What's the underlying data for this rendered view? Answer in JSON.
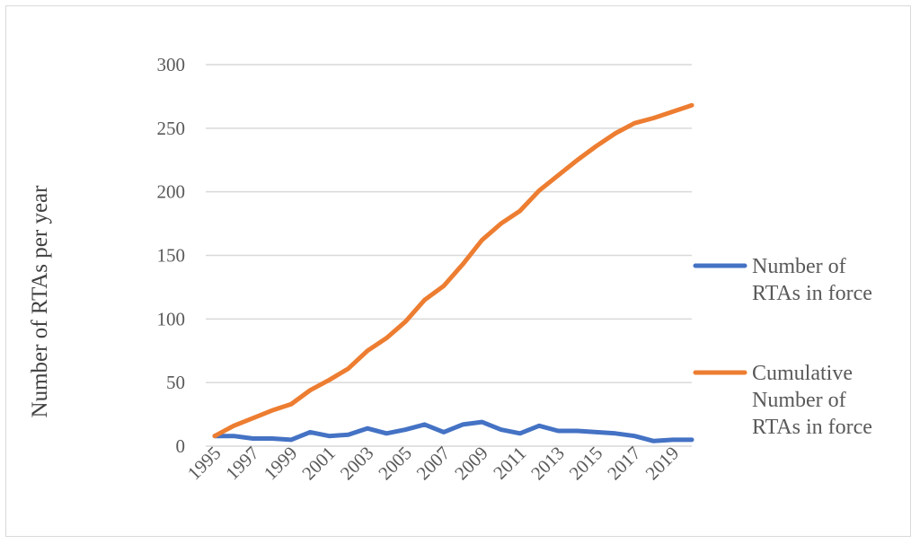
{
  "chart_data": {
    "type": "line",
    "title": "",
    "xlabel": "",
    "ylabel": "Number of RTAs per year",
    "ylim": [
      0,
      300
    ],
    "yticks": [
      0,
      50,
      100,
      150,
      200,
      250,
      300
    ],
    "x": [
      1995,
      1996,
      1997,
      1998,
      1999,
      2000,
      2001,
      2002,
      2003,
      2004,
      2005,
      2006,
      2007,
      2008,
      2009,
      2010,
      2011,
      2012,
      2013,
      2014,
      2015,
      2016,
      2017,
      2018,
      2019,
      2020
    ],
    "xtick_labels": [
      "1995",
      "1997",
      "1999",
      "2001",
      "2003",
      "2005",
      "2007",
      "2009",
      "2011",
      "2013",
      "2015",
      "2017",
      "2019"
    ],
    "grid": true,
    "legend_position": "right",
    "series": [
      {
        "name_lines": [
          "Number of",
          "RTAs in force"
        ],
        "color": "#4472C4",
        "values": [
          8,
          8,
          6,
          6,
          5,
          11,
          8,
          9,
          14,
          10,
          13,
          17,
          11,
          17,
          19,
          13,
          10,
          16,
          12,
          12,
          11,
          10,
          8,
          4,
          5,
          5
        ]
      },
      {
        "name_lines": [
          "Cumulative",
          "Number of",
          "RTAs in force"
        ],
        "color": "#ED7D31",
        "values": [
          8,
          16,
          22,
          28,
          33,
          44,
          52,
          61,
          75,
          85,
          98,
          115,
          126,
          143,
          162,
          175,
          185,
          201,
          213,
          225,
          236,
          246,
          254,
          258,
          263,
          268
        ]
      }
    ]
  }
}
